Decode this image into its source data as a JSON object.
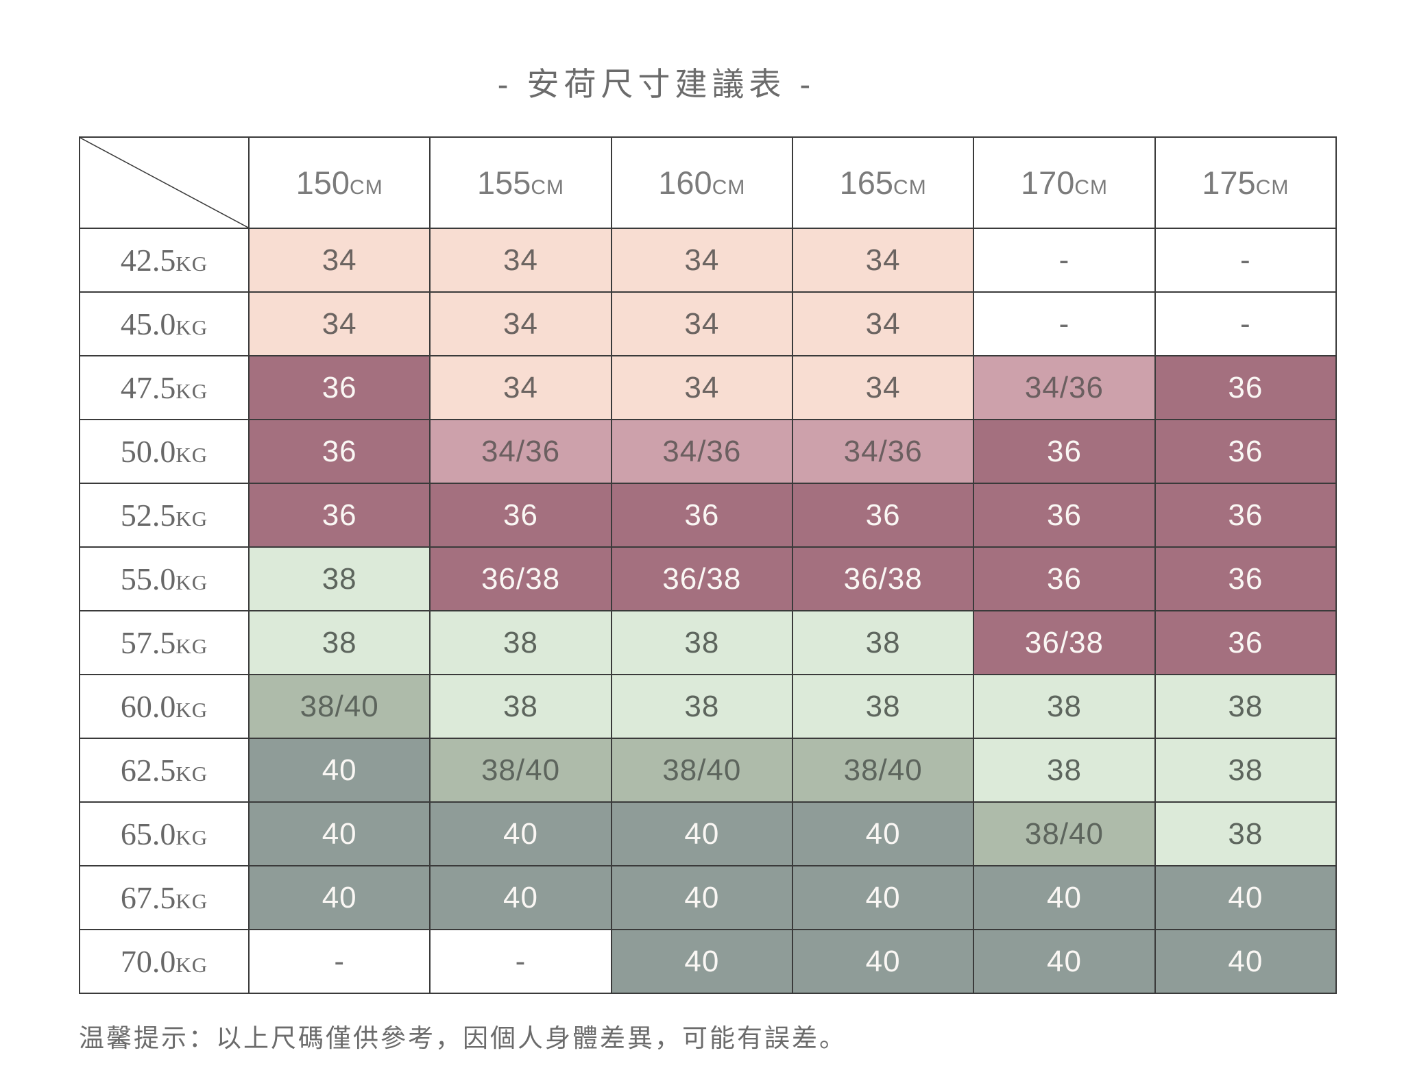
{
  "title": "- 安荷尺寸建議表 -",
  "footnote": "温馨提示：以上尺碼僅供參考，因個人身體差異，可能有誤差。",
  "colors": {
    "border": "#3a3a3a",
    "title_text": "#6b6b6b",
    "header_text": "#7b7b7b",
    "row_label_text": "#686868"
  },
  "cell_styles": {
    "pink": {
      "bg": "#f8ddd2",
      "text": "#6b6461"
    },
    "mauve": {
      "bg": "#cda1ab",
      "text": "#6b5f60"
    },
    "mauve_dark": {
      "bg": "#a4707f",
      "text": "#faf7f4"
    },
    "green": {
      "bg": "#dcead9",
      "text": "#5d655d"
    },
    "sage": {
      "bg": "#aebbaa",
      "text": "#5d655d"
    },
    "slate": {
      "bg": "#8f9c98",
      "text": "#faf7f4"
    },
    "blank": {
      "bg": "#ffffff",
      "text": "#6e6e6e"
    }
  },
  "chart_data": {
    "type": "table",
    "title": "安荷尺寸建議表",
    "column_headers": [
      {
        "value": "150",
        "unit": "CM"
      },
      {
        "value": "155",
        "unit": "CM"
      },
      {
        "value": "160",
        "unit": "CM"
      },
      {
        "value": "165",
        "unit": "CM"
      },
      {
        "value": "170",
        "unit": "CM"
      },
      {
        "value": "175",
        "unit": "CM"
      }
    ],
    "row_headers": [
      {
        "value": "42.5",
        "unit": "KG"
      },
      {
        "value": "45.0",
        "unit": "KG"
      },
      {
        "value": "47.5",
        "unit": "KG"
      },
      {
        "value": "50.0",
        "unit": "KG"
      },
      {
        "value": "52.5",
        "unit": "KG"
      },
      {
        "value": "55.0",
        "unit": "KG"
      },
      {
        "value": "57.5",
        "unit": "KG"
      },
      {
        "value": "60.0",
        "unit": "KG"
      },
      {
        "value": "62.5",
        "unit": "KG"
      },
      {
        "value": "65.0",
        "unit": "KG"
      },
      {
        "value": "67.5",
        "unit": "KG"
      },
      {
        "value": "70.0",
        "unit": "KG"
      }
    ],
    "cells": [
      [
        {
          "v": "34",
          "s": "pink"
        },
        {
          "v": "34",
          "s": "pink"
        },
        {
          "v": "34",
          "s": "pink"
        },
        {
          "v": "34",
          "s": "pink"
        },
        {
          "v": "-",
          "s": "blank"
        },
        {
          "v": "-",
          "s": "blank"
        }
      ],
      [
        {
          "v": "34",
          "s": "pink"
        },
        {
          "v": "34",
          "s": "pink"
        },
        {
          "v": "34",
          "s": "pink"
        },
        {
          "v": "34",
          "s": "pink"
        },
        {
          "v": "-",
          "s": "blank"
        },
        {
          "v": "-",
          "s": "blank"
        }
      ],
      [
        {
          "v": "36",
          "s": "mauve_dark"
        },
        {
          "v": "34",
          "s": "pink"
        },
        {
          "v": "34",
          "s": "pink"
        },
        {
          "v": "34",
          "s": "pink"
        },
        {
          "v": "34/36",
          "s": "mauve"
        },
        {
          "v": "36",
          "s": "mauve_dark"
        }
      ],
      [
        {
          "v": "36",
          "s": "mauve_dark"
        },
        {
          "v": "34/36",
          "s": "mauve"
        },
        {
          "v": "34/36",
          "s": "mauve"
        },
        {
          "v": "34/36",
          "s": "mauve"
        },
        {
          "v": "36",
          "s": "mauve_dark"
        },
        {
          "v": "36",
          "s": "mauve_dark"
        }
      ],
      [
        {
          "v": "36",
          "s": "mauve_dark"
        },
        {
          "v": "36",
          "s": "mauve_dark"
        },
        {
          "v": "36",
          "s": "mauve_dark"
        },
        {
          "v": "36",
          "s": "mauve_dark"
        },
        {
          "v": "36",
          "s": "mauve_dark"
        },
        {
          "v": "36",
          "s": "mauve_dark"
        }
      ],
      [
        {
          "v": "38",
          "s": "green"
        },
        {
          "v": "36/38",
          "s": "mauve_dark"
        },
        {
          "v": "36/38",
          "s": "mauve_dark"
        },
        {
          "v": "36/38",
          "s": "mauve_dark"
        },
        {
          "v": "36",
          "s": "mauve_dark"
        },
        {
          "v": "36",
          "s": "mauve_dark"
        }
      ],
      [
        {
          "v": "38",
          "s": "green"
        },
        {
          "v": "38",
          "s": "green"
        },
        {
          "v": "38",
          "s": "green"
        },
        {
          "v": "38",
          "s": "green"
        },
        {
          "v": "36/38",
          "s": "mauve_dark"
        },
        {
          "v": "36",
          "s": "mauve_dark"
        }
      ],
      [
        {
          "v": "38/40",
          "s": "sage"
        },
        {
          "v": "38",
          "s": "green"
        },
        {
          "v": "38",
          "s": "green"
        },
        {
          "v": "38",
          "s": "green"
        },
        {
          "v": "38",
          "s": "green"
        },
        {
          "v": "38",
          "s": "green"
        }
      ],
      [
        {
          "v": "40",
          "s": "slate"
        },
        {
          "v": "38/40",
          "s": "sage"
        },
        {
          "v": "38/40",
          "s": "sage"
        },
        {
          "v": "38/40",
          "s": "sage"
        },
        {
          "v": "38",
          "s": "green"
        },
        {
          "v": "38",
          "s": "green"
        }
      ],
      [
        {
          "v": "40",
          "s": "slate"
        },
        {
          "v": "40",
          "s": "slate"
        },
        {
          "v": "40",
          "s": "slate"
        },
        {
          "v": "40",
          "s": "slate"
        },
        {
          "v": "38/40",
          "s": "sage"
        },
        {
          "v": "38",
          "s": "green"
        }
      ],
      [
        {
          "v": "40",
          "s": "slate"
        },
        {
          "v": "40",
          "s": "slate"
        },
        {
          "v": "40",
          "s": "slate"
        },
        {
          "v": "40",
          "s": "slate"
        },
        {
          "v": "40",
          "s": "slate"
        },
        {
          "v": "40",
          "s": "slate"
        }
      ],
      [
        {
          "v": "-",
          "s": "blank"
        },
        {
          "v": "-",
          "s": "blank"
        },
        {
          "v": "40",
          "s": "slate"
        },
        {
          "v": "40",
          "s": "slate"
        },
        {
          "v": "40",
          "s": "slate"
        },
        {
          "v": "40",
          "s": "slate"
        }
      ]
    ]
  }
}
